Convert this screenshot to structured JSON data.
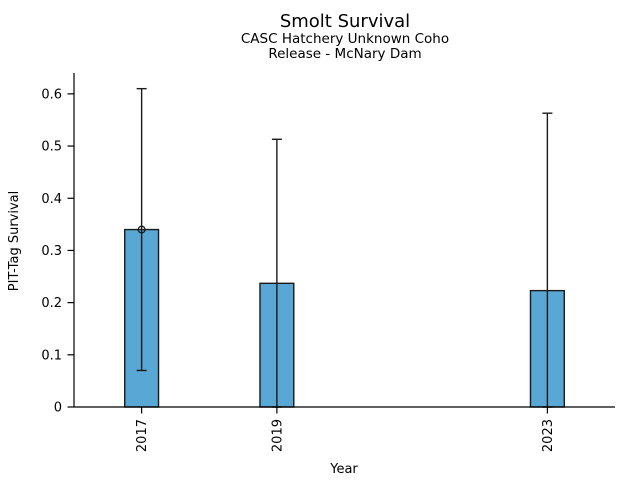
{
  "figure": {
    "title": "Smolt Survival",
    "subtitle_line1": "CASC Hatchery Unknown Coho",
    "subtitle_line2": "Release - McNary Dam"
  },
  "chart_data": {
    "type": "bar",
    "title": "Smolt Survival",
    "subtitle": [
      "CASC Hatchery Unknown Coho",
      "Release - McNary Dam"
    ],
    "xlabel": "Year",
    "ylabel": "PIT-Tag Survival",
    "categories": [
      "2017",
      "2019",
      "2023"
    ],
    "x": [
      2017,
      2019,
      2023
    ],
    "values": [
      0.34,
      0.237,
      0.223
    ],
    "error_low": [
      0.07,
      0.0,
      0.0
    ],
    "error_high": [
      0.61,
      0.513,
      0.563
    ],
    "markers": [
      {
        "x": 2017,
        "y": 0.34
      }
    ],
    "xlim": [
      2016,
      2024
    ],
    "ylim": [
      0,
      0.64
    ],
    "yticks": [
      0,
      0.1,
      0.2,
      0.3,
      0.4,
      0.5,
      0.6
    ],
    "ytick_labels": [
      "0",
      "0.1",
      "0.2",
      "0.3",
      "0.4",
      "0.5",
      "0.6"
    ],
    "bar_width_x": 0.5,
    "grid": false,
    "legend": false,
    "colors": {
      "bar_fill": "#58A7D4",
      "bar_edge": "#1a1a1a",
      "error": "#1a1a1a",
      "spine": "#000000",
      "text": "#000000"
    }
  }
}
